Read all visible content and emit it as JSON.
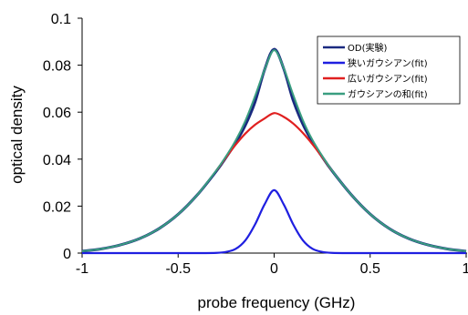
{
  "chart_data": {
    "type": "line",
    "title": "",
    "xlabel": "probe frequency (GHz)",
    "ylabel": "optical density",
    "xlim": [
      -1,
      1
    ],
    "ylim": [
      0,
      0.1
    ],
    "x_ticks": [
      "-1",
      "-0.5",
      "0",
      "0.5",
      "1"
    ],
    "y_ticks": [
      "0",
      "0.02",
      "0.04",
      "0.06",
      "0.08",
      "0.1"
    ],
    "grid": false,
    "legend_position": "top-right",
    "x": [
      -1.0,
      -0.9,
      -0.8,
      -0.7,
      -0.6,
      -0.5,
      -0.4,
      -0.3,
      -0.25,
      -0.2,
      -0.15,
      -0.1,
      -0.05,
      0.0,
      0.05,
      0.1,
      0.15,
      0.2,
      0.25,
      0.3,
      0.4,
      0.5,
      0.6,
      0.7,
      0.8,
      0.9,
      1.0
    ],
    "series": [
      {
        "name": "OD(実験)",
        "color": "#1a2a80",
        "values": [
          0.0008,
          0.0018,
          0.0035,
          0.0062,
          0.0104,
          0.0165,
          0.0248,
          0.035,
          0.0408,
          0.047,
          0.0544,
          0.0642,
          0.078,
          0.0868,
          0.0785,
          0.0648,
          0.0548,
          0.0472,
          0.041,
          0.0352,
          0.025,
          0.0166,
          0.0104,
          0.0062,
          0.0035,
          0.0018,
          0.0008
        ]
      },
      {
        "name": "狭いガウシアン(fit)",
        "color": "#1f1fe0",
        "values": [
          0,
          0,
          0,
          0,
          0,
          0,
          0,
          0.0001,
          0.0005,
          0.0018,
          0.0054,
          0.0121,
          0.0207,
          0.0268,
          0.0207,
          0.0121,
          0.0054,
          0.0018,
          0.0005,
          0.0001,
          0,
          0,
          0,
          0,
          0,
          0,
          0
        ]
      },
      {
        "name": "広いガウシアン(fit)",
        "color": "#e02020",
        "values": [
          null,
          null,
          null,
          null,
          null,
          null,
          null,
          0.0352,
          0.0408,
          0.0462,
          0.0509,
          0.0546,
          0.0573,
          0.0596,
          0.058,
          0.0551,
          0.0511,
          0.0463,
          0.0409,
          0.0352,
          null,
          null,
          null,
          null,
          null,
          null,
          null
        ]
      },
      {
        "name": "ガウシアンの和(fit)",
        "color": "#3a9e80",
        "values": [
          0.0008,
          0.0018,
          0.0035,
          0.0062,
          0.0104,
          0.0165,
          0.0248,
          0.0353,
          0.0413,
          0.048,
          0.0563,
          0.0667,
          0.078,
          0.0864,
          0.0787,
          0.0672,
          0.0565,
          0.0481,
          0.0414,
          0.0353,
          0.025,
          0.0166,
          0.0104,
          0.0062,
          0.0035,
          0.0018,
          0.0008
        ]
      }
    ]
  }
}
